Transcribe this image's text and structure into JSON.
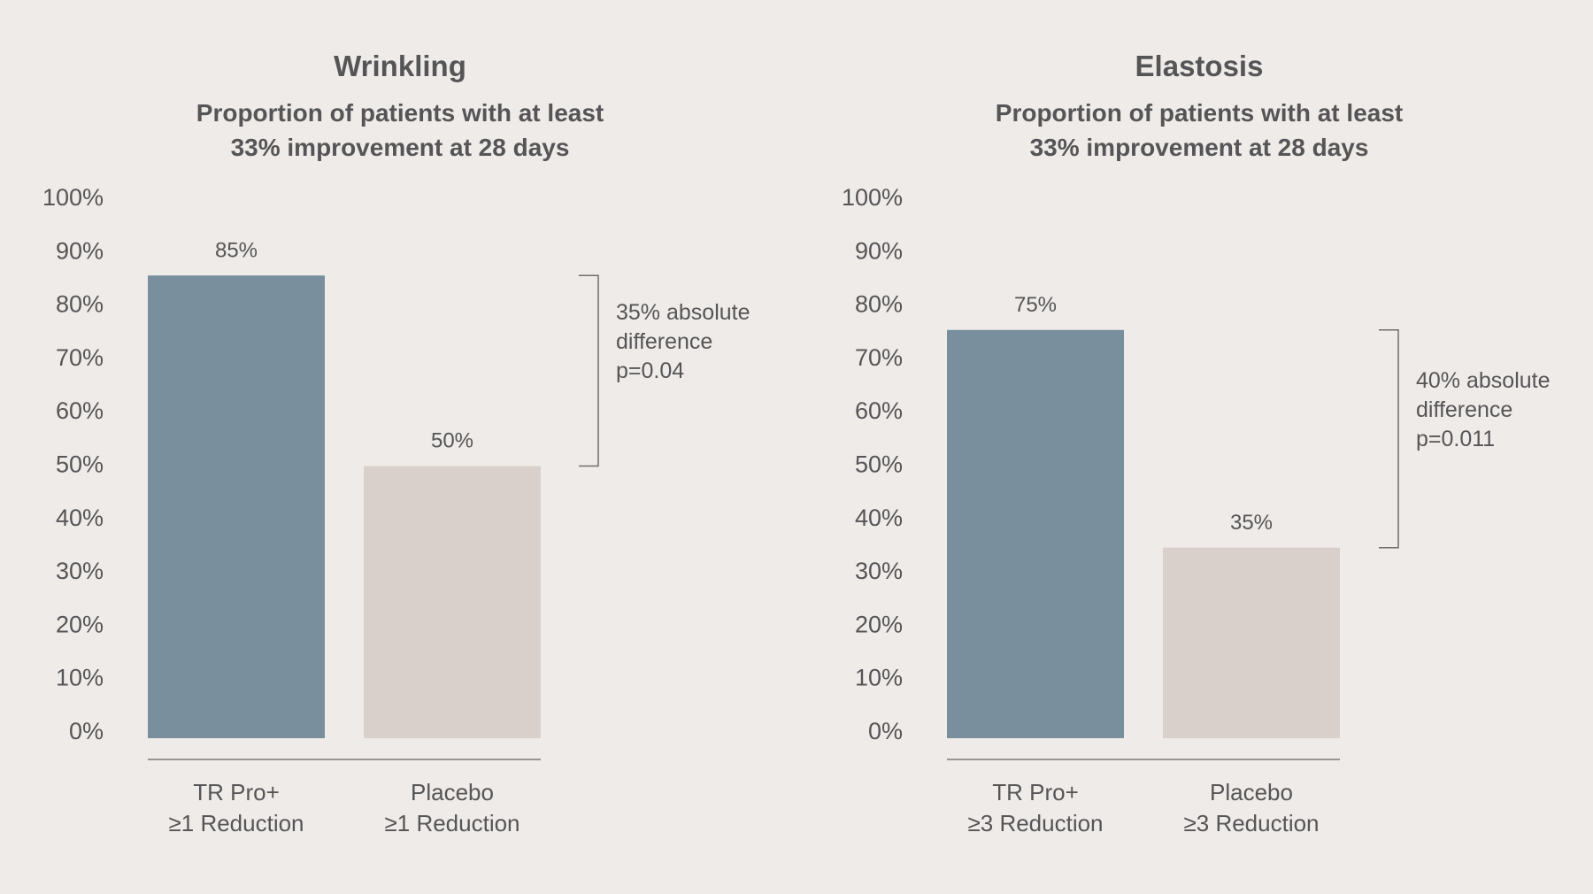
{
  "chart_data": [
    {
      "type": "bar",
      "title": "Wrinkling",
      "subtitle_lines": [
        "Proportion of patients with at least",
        "33% improvement at 28 days"
      ],
      "categories": [
        [
          "TR Pro+",
          "≥1 Reduction"
        ],
        [
          "Placebo",
          "≥1 Reduction"
        ]
      ],
      "values": [
        85,
        50
      ],
      "value_labels": [
        "85%",
        "50%"
      ],
      "colors": [
        "#798f9e",
        "#d9d0cb"
      ],
      "xlabel": "",
      "ylabel": "",
      "ylim": [
        0,
        100
      ],
      "yticks": [
        "0%",
        "10%",
        "20%",
        "30%",
        "40%",
        "50%",
        "60%",
        "70%",
        "80%",
        "90%",
        "100%"
      ],
      "grid": false,
      "annotation": {
        "lines": [
          "35% absolute",
          "difference",
          "p=0.04"
        ],
        "from": 50,
        "to": 85
      }
    },
    {
      "type": "bar",
      "title": "Elastosis",
      "subtitle_lines": [
        "Proportion of patients with at least",
        "33% improvement at 28 days"
      ],
      "categories": [
        [
          "TR Pro+",
          "≥3 Reduction"
        ],
        [
          "Placebo",
          "≥3 Reduction"
        ]
      ],
      "values": [
        75,
        35
      ],
      "value_labels": [
        "75%",
        "35%"
      ],
      "colors": [
        "#798f9e",
        "#d9d0cb"
      ],
      "xlabel": "",
      "ylabel": "",
      "ylim": [
        0,
        100
      ],
      "yticks": [
        "0%",
        "10%",
        "20%",
        "30%",
        "40%",
        "50%",
        "60%",
        "70%",
        "80%",
        "90%",
        "100%"
      ],
      "grid": false,
      "annotation": {
        "lines": [
          "40% absolute",
          "difference",
          "p=0.011"
        ],
        "from": 35,
        "to": 75
      }
    }
  ]
}
